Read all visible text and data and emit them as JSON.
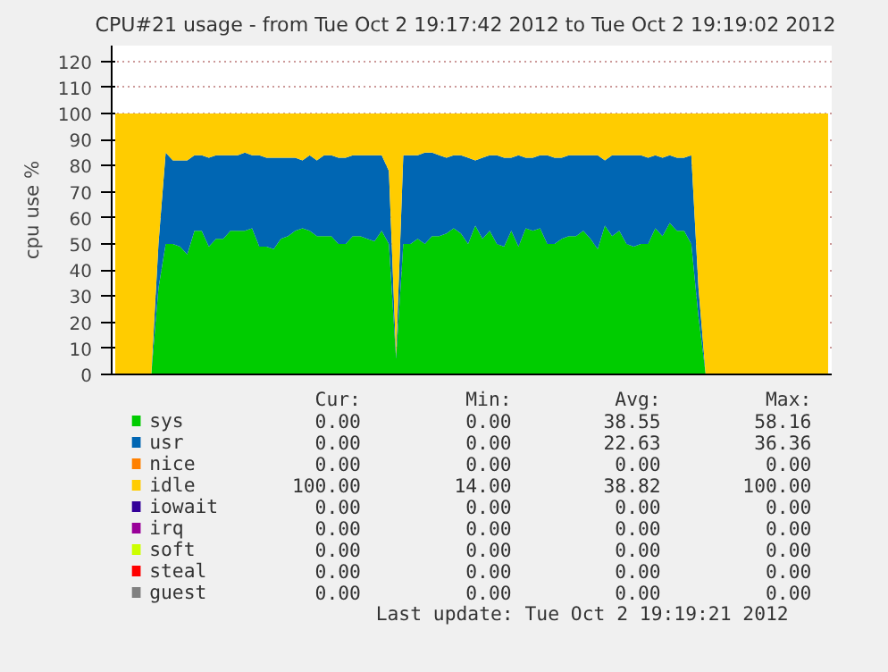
{
  "chart_data": {
    "type": "area",
    "stacked": true,
    "title": "CPU#21 usage - from Tue Oct  2 19:17:42 2012 to Tue Oct  2 19:19:02 2012",
    "ylabel": "cpu use %",
    "categories": [
      null,
      null,
      null,
      null,
      null,
      null,
      null,
      null,
      null,
      null,
      null,
      null,
      null,
      null,
      null,
      null,
      null,
      null,
      null,
      null,
      null,
      null,
      null,
      null,
      null,
      null,
      null,
      null,
      null,
      null,
      null,
      null,
      null,
      null,
      null,
      null,
      null,
      null,
      null,
      null,
      null,
      null,
      null,
      null,
      null,
      null,
      null,
      null,
      null,
      null,
      null,
      null,
      null,
      null,
      null,
      null,
      null,
      null,
      null,
      null,
      null,
      null,
      null,
      null,
      null,
      null,
      null,
      null,
      null,
      null,
      null,
      null,
      null,
      null,
      null,
      null,
      null,
      null,
      null,
      null,
      null,
      null,
      null,
      null,
      null,
      null,
      null,
      null,
      null,
      null,
      null,
      null,
      null,
      null,
      null,
      null,
      null,
      null,
      null,
      null
    ],
    "ylim": [
      0,
      126
    ],
    "yticks": [
      0,
      10,
      20,
      30,
      40,
      50,
      60,
      70,
      80,
      90,
      100,
      110,
      120
    ],
    "grid": "y",
    "tick_labels": "y",
    "legend": "bottom",
    "series": [
      {
        "name": "sys",
        "color": "#00cc00",
        "values": [
          0,
          0,
          0,
          0,
          0,
          0,
          33,
          50,
          50,
          49,
          46,
          55,
          55,
          49,
          52,
          52,
          55,
          55,
          55,
          56,
          49,
          49,
          48,
          52,
          53,
          55,
          56,
          55,
          53,
          53,
          53,
          50,
          50,
          53,
          53,
          52,
          51,
          55,
          50,
          6,
          50,
          50,
          52,
          50,
          53,
          53,
          54,
          56,
          54,
          50,
          57,
          52,
          55,
          50,
          49,
          55,
          49,
          56,
          55,
          56,
          50,
          50,
          52,
          53,
          53,
          55,
          52,
          48,
          57,
          53,
          55,
          50,
          49,
          50,
          50,
          56,
          53,
          58,
          55,
          55,
          50,
          22,
          0,
          0,
          0,
          0,
          0,
          0,
          0,
          0,
          0,
          0,
          0,
          0,
          0,
          0,
          0,
          0,
          0,
          0
        ]
      },
      {
        "name": "usr",
        "color": "#0066b3",
        "values": [
          0,
          0,
          0,
          0,
          0,
          0,
          17,
          35,
          32,
          33,
          36,
          29,
          29,
          34,
          32,
          32,
          29,
          29,
          30,
          28,
          35,
          34,
          35,
          31,
          30,
          28,
          26,
          29,
          29,
          31,
          31,
          33,
          33,
          31,
          31,
          32,
          33,
          29,
          28,
          1,
          34,
          34,
          32,
          35,
          32,
          31,
          29,
          28,
          30,
          33,
          25,
          31,
          29,
          34,
          34,
          28,
          35,
          27,
          28,
          28,
          34,
          33,
          31,
          31,
          31,
          29,
          32,
          36,
          25,
          31,
          29,
          34,
          35,
          34,
          33,
          28,
          30,
          26,
          28,
          28,
          34,
          11,
          0,
          0,
          0,
          0,
          0,
          0,
          0,
          0,
          0,
          0,
          0,
          0,
          0,
          0,
          0,
          0,
          0,
          0
        ]
      },
      {
        "name": "nice",
        "color": "#ff8000",
        "values": [
          null,
          null,
          null,
          null,
          null,
          null,
          null,
          null,
          null,
          null,
          null,
          null,
          null,
          null,
          null,
          null,
          null,
          null,
          null,
          null,
          null,
          null,
          null,
          null,
          null,
          null,
          null,
          null,
          null,
          null,
          null,
          null,
          null,
          null,
          null,
          null,
          null,
          null,
          null,
          null,
          null,
          null,
          null,
          null,
          null,
          null,
          null,
          null,
          null,
          null,
          null,
          null,
          null,
          null,
          null,
          null,
          null,
          null,
          null,
          null,
          null,
          null,
          null,
          null,
          null,
          null,
          null,
          null,
          null,
          null,
          null,
          null,
          null,
          null,
          null,
          null,
          null,
          null,
          null,
          null,
          null,
          null,
          null,
          null,
          null,
          null,
          null,
          null,
          null,
          null,
          null,
          null,
          null,
          null,
          null,
          null,
          null,
          null,
          null,
          null
        ]
      },
      {
        "name": "idle",
        "color": "#ffcc00",
        "values": [
          100,
          100,
          100,
          100,
          100,
          100,
          50,
          15,
          18,
          18,
          18,
          16,
          16,
          17,
          16,
          16,
          16,
          16,
          15,
          16,
          16,
          17,
          17,
          17,
          17,
          17,
          18,
          16,
          18,
          16,
          16,
          17,
          17,
          16,
          16,
          16,
          16,
          16,
          22,
          93,
          16,
          16,
          16,
          15,
          15,
          16,
          17,
          16,
          16,
          17,
          18,
          17,
          16,
          16,
          17,
          17,
          16,
          17,
          17,
          16,
          16,
          17,
          17,
          16,
          16,
          16,
          16,
          16,
          18,
          16,
          16,
          16,
          16,
          16,
          17,
          16,
          17,
          16,
          17,
          17,
          16,
          67,
          100,
          100,
          100,
          100,
          100,
          100,
          100,
          100,
          100,
          100,
          100,
          100,
          100,
          100,
          100,
          100,
          100,
          100
        ]
      },
      {
        "name": "iowait",
        "color": "#330099",
        "values": [
          null,
          null,
          null,
          null,
          null,
          null,
          null,
          null,
          null,
          null,
          null,
          null,
          null,
          null,
          null,
          null,
          null,
          null,
          null,
          null,
          null,
          null,
          null,
          null,
          null,
          null,
          null,
          null,
          null,
          null,
          null,
          null,
          null,
          null,
          null,
          null,
          null,
          null,
          null,
          null,
          null,
          null,
          null,
          null,
          null,
          null,
          null,
          null,
          null,
          null,
          null,
          null,
          null,
          null,
          null,
          null,
          null,
          null,
          null,
          null,
          null,
          null,
          null,
          null,
          null,
          null,
          null,
          null,
          null,
          null,
          null,
          null,
          null,
          null,
          null,
          null,
          null,
          null,
          null,
          null,
          null,
          null,
          null,
          null,
          null,
          null,
          null,
          null,
          null,
          null,
          null,
          null,
          null,
          null,
          null,
          null,
          null,
          null,
          null,
          null
        ]
      },
      {
        "name": "irq",
        "color": "#990099",
        "values": [
          null,
          null,
          null,
          null,
          null,
          null,
          null,
          null,
          null,
          null,
          null,
          null,
          null,
          null,
          null,
          null,
          null,
          null,
          null,
          null,
          null,
          null,
          null,
          null,
          null,
          null,
          null,
          null,
          null,
          null,
          null,
          null,
          null,
          null,
          null,
          null,
          null,
          null,
          null,
          null,
          null,
          null,
          null,
          null,
          null,
          null,
          null,
          null,
          null,
          null,
          null,
          null,
          null,
          null,
          null,
          null,
          null,
          null,
          null,
          null,
          null,
          null,
          null,
          null,
          null,
          null,
          null,
          null,
          null,
          null,
          null,
          null,
          null,
          null,
          null,
          null,
          null,
          null,
          null,
          null,
          null,
          null,
          null,
          null,
          null,
          null,
          null,
          null,
          null,
          null,
          null,
          null,
          null,
          null,
          null,
          null,
          null,
          null,
          null,
          null
        ]
      },
      {
        "name": "soft",
        "color": "#ccff00",
        "values": [
          null,
          null,
          null,
          null,
          null,
          null,
          null,
          null,
          null,
          null,
          null,
          null,
          null,
          null,
          null,
          null,
          null,
          null,
          null,
          null,
          null,
          null,
          null,
          null,
          null,
          null,
          null,
          null,
          null,
          null,
          null,
          null,
          null,
          null,
          null,
          null,
          null,
          null,
          null,
          null,
          null,
          null,
          null,
          null,
          null,
          null,
          null,
          null,
          null,
          null,
          null,
          null,
          null,
          null,
          null,
          null,
          null,
          null,
          null,
          null,
          null,
          null,
          null,
          null,
          null,
          null,
          null,
          null,
          null,
          null,
          null,
          null,
          null,
          null,
          null,
          null,
          null,
          null,
          null,
          null,
          null,
          null,
          null,
          null,
          null,
          null,
          null,
          null,
          null,
          null,
          null,
          null,
          null,
          null,
          null,
          null,
          null,
          null,
          null,
          null
        ]
      },
      {
        "name": "steal",
        "color": "#ff0000",
        "values": [
          null,
          null,
          null,
          null,
          null,
          null,
          null,
          null,
          null,
          null,
          null,
          null,
          null,
          null,
          null,
          null,
          null,
          null,
          null,
          null,
          null,
          null,
          null,
          null,
          null,
          null,
          null,
          null,
          null,
          null,
          null,
          null,
          null,
          null,
          null,
          null,
          null,
          null,
          null,
          null,
          null,
          null,
          null,
          null,
          null,
          null,
          null,
          null,
          null,
          null,
          null,
          null,
          null,
          null,
          null,
          null,
          null,
          null,
          null,
          null,
          null,
          null,
          null,
          null,
          null,
          null,
          null,
          null,
          null,
          null,
          null,
          null,
          null,
          null,
          null,
          null,
          null,
          null,
          null,
          null,
          null,
          null,
          null,
          null,
          null,
          null,
          null,
          null,
          null,
          null,
          null,
          null,
          null,
          null,
          null,
          null,
          null,
          null,
          null,
          null
        ]
      },
      {
        "name": "guest",
        "color": "#808080",
        "values": [
          null,
          null,
          null,
          null,
          null,
          null,
          null,
          null,
          null,
          null,
          null,
          null,
          null,
          null,
          null,
          null,
          null,
          null,
          null,
          null,
          null,
          null,
          null,
          null,
          null,
          null,
          null,
          null,
          null,
          null,
          null,
          null,
          null,
          null,
          null,
          null,
          null,
          null,
          null,
          null,
          null,
          null,
          null,
          null,
          null,
          null,
          null,
          null,
          null,
          null,
          null,
          null,
          null,
          null,
          null,
          null,
          null,
          null,
          null,
          null,
          null,
          null,
          null,
          null,
          null,
          null,
          null,
          null,
          null,
          null,
          null,
          null,
          null,
          null,
          null,
          null,
          null,
          null,
          null,
          null,
          null,
          null,
          null,
          null,
          null,
          null,
          null,
          null,
          null,
          null,
          null,
          null,
          null,
          null,
          null,
          null,
          null,
          null,
          null,
          null
        ]
      }
    ],
    "annotations": [
      "Cur:",
      "Min:",
      "Avg:",
      "Max:",
      "0.00",
      "0.00",
      "38.55",
      "58.16",
      "0.00",
      "0.00",
      "22.63",
      "36.36",
      "0.00",
      "0.00",
      "0.00",
      "0.00",
      "100.00",
      "14.00",
      "38.82",
      "100.00",
      "0.00",
      "0.00",
      "0.00",
      "0.00",
      "0.00",
      "0.00",
      "0.00",
      "0.00",
      "0.00",
      "0.00",
      "0.00",
      "0.00",
      "0.00",
      "0.00",
      "0.00",
      "0.00",
      "0.00",
      "0.00",
      "0.00",
      "0.00",
      "Last update:  Tue Oct  2 19:19:21 2012"
    ]
  }
}
